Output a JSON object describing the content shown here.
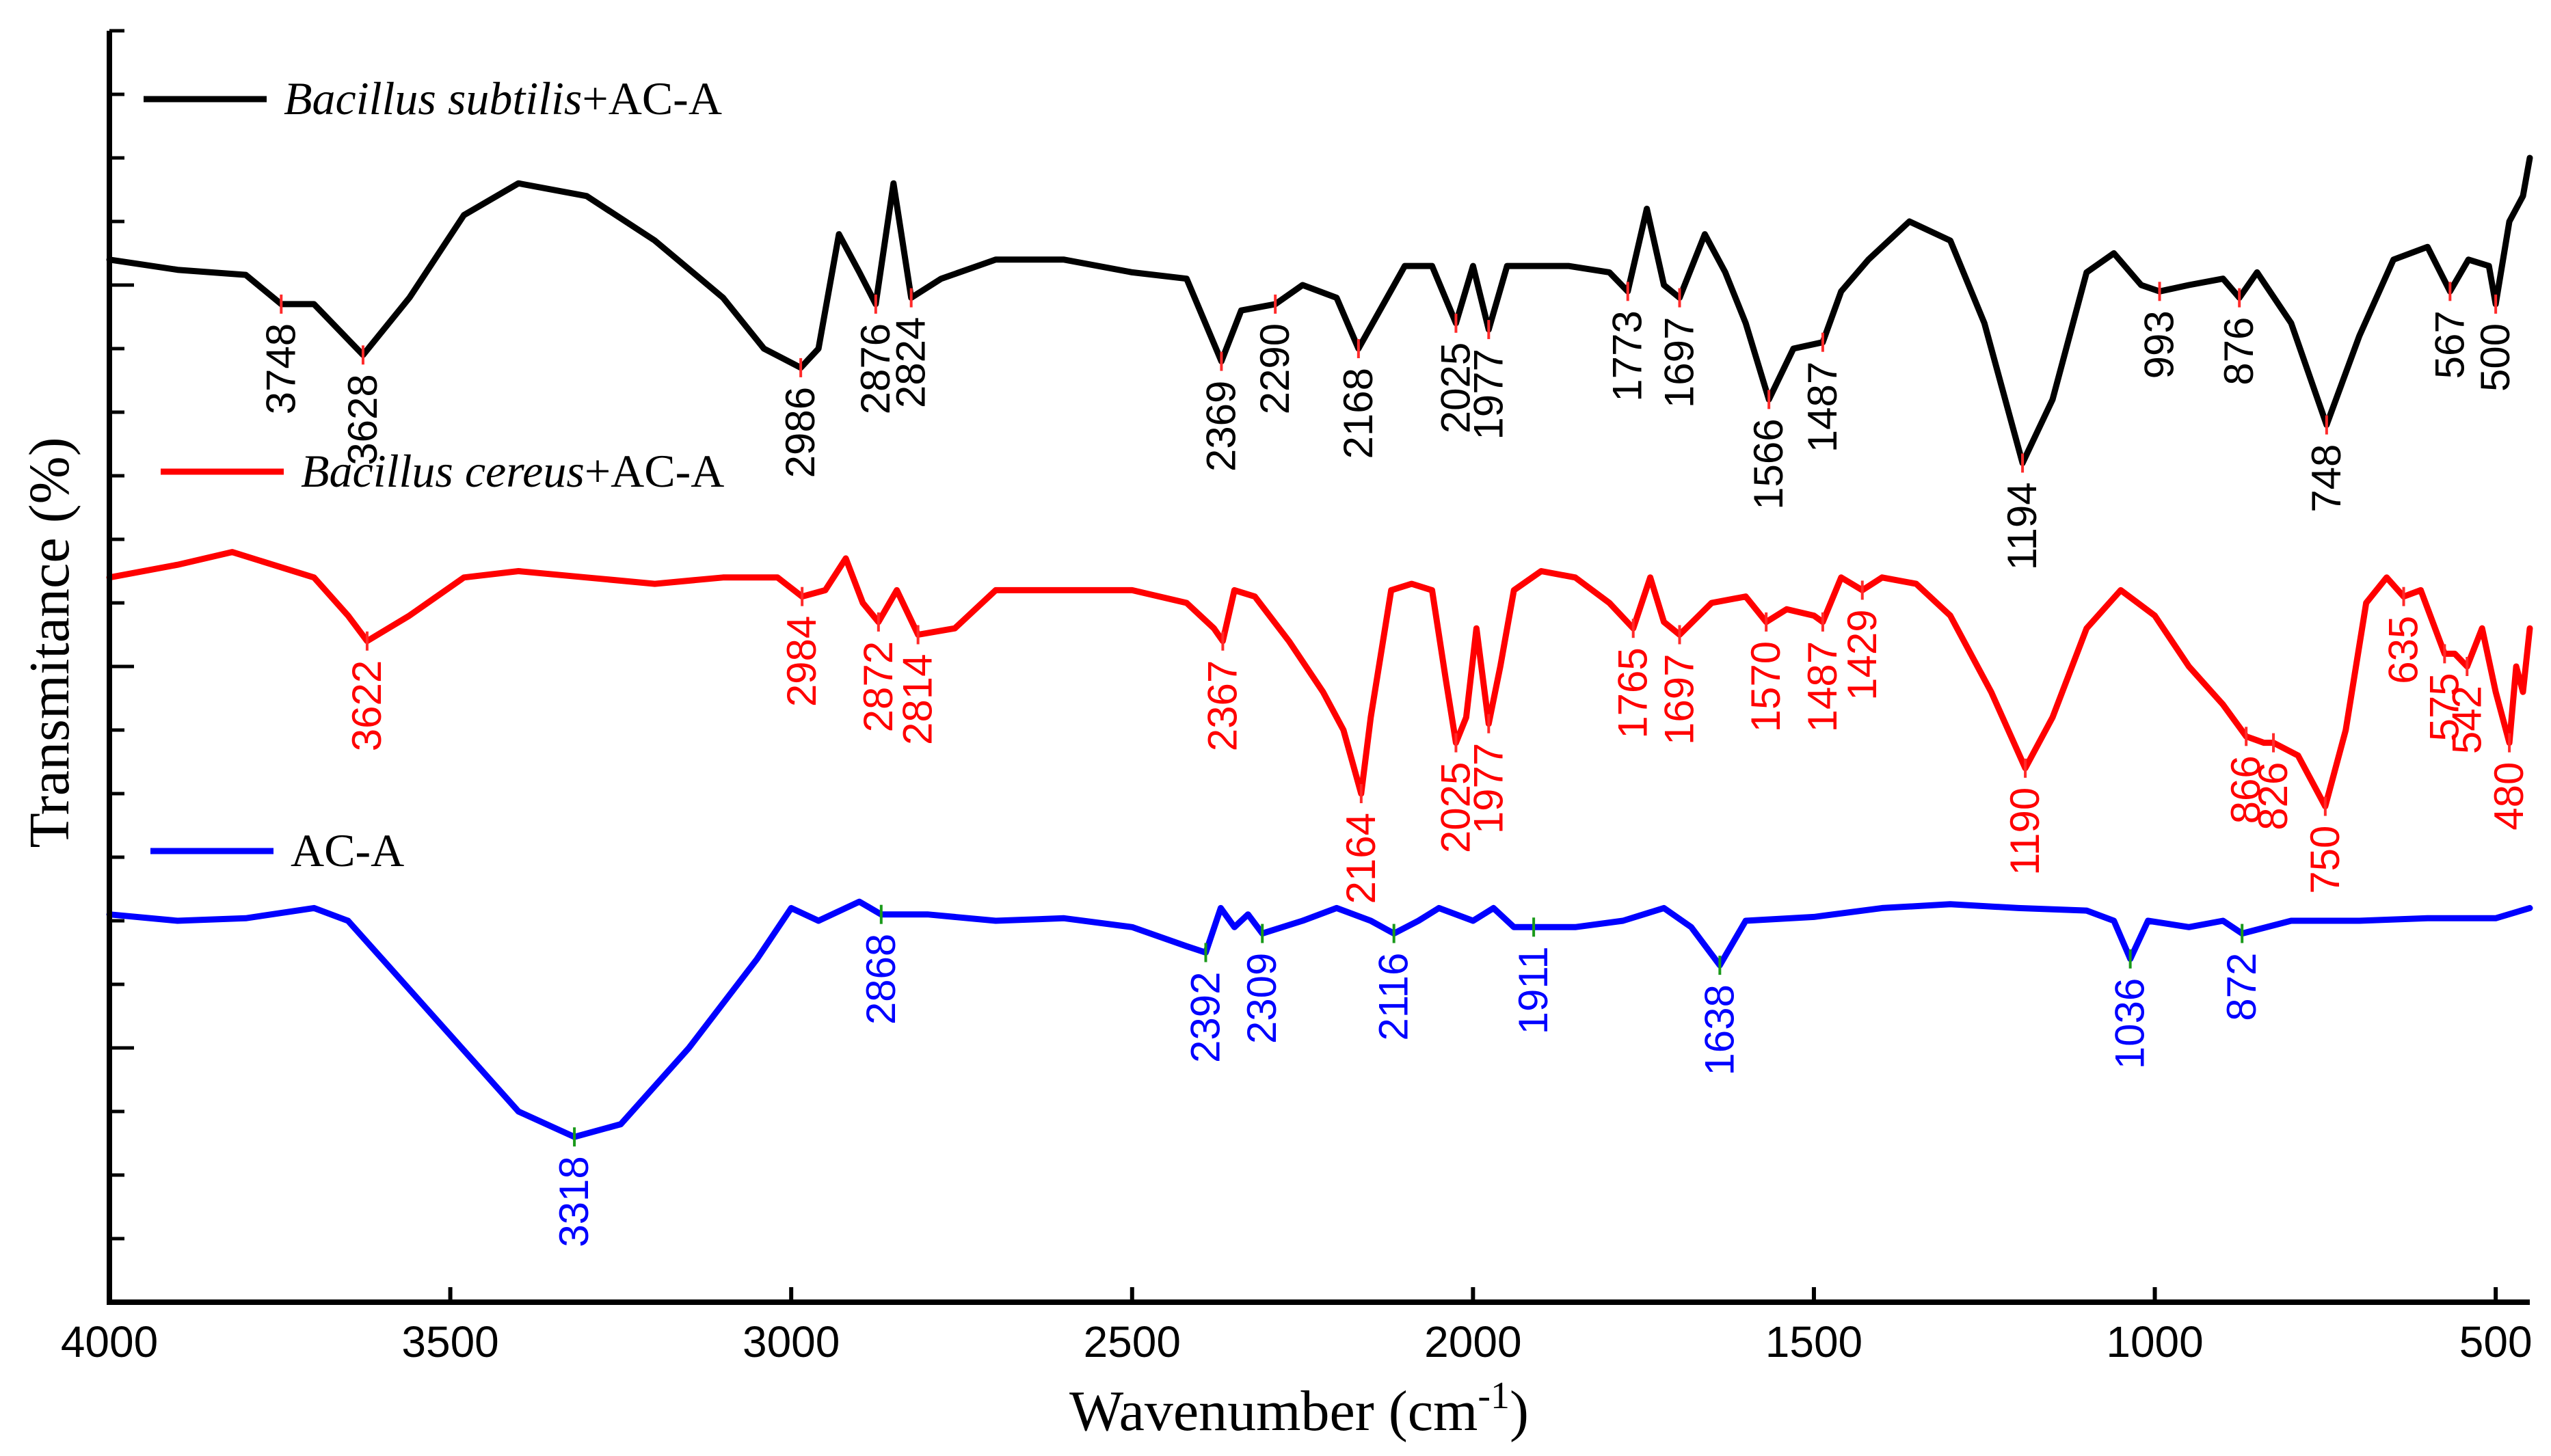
{
  "chart_data": {
    "type": "line",
    "title": "",
    "xlabel": "Wavenumber  (cm",
    "xlabel_sup": "-1",
    "xlabel_close": ")",
    "ylabel": "Transmitance (%)",
    "xlim": [
      4000,
      450
    ],
    "x_reversed": true,
    "x_ticks": [
      4000,
      3500,
      3000,
      2500,
      2000,
      1500,
      1000,
      500
    ],
    "series": [
      {
        "name": "Bacillus subtilis+AC-A",
        "legend_italic": "Bacillus subtilis",
        "legend_suffix": "+AC-A",
        "color": "#000000",
        "tick_color": "#ff2a2a",
        "baseline": 0.2,
        "points": [
          [
            4000,
            0.18
          ],
          [
            3900,
            0.188
          ],
          [
            3800,
            0.192
          ],
          [
            3748,
            0.215
          ],
          [
            3700,
            0.215
          ],
          [
            3628,
            0.255
          ],
          [
            3560,
            0.21
          ],
          [
            3480,
            0.145
          ],
          [
            3400,
            0.12
          ],
          [
            3300,
            0.13
          ],
          [
            3200,
            0.165
          ],
          [
            3100,
            0.21
          ],
          [
            3040,
            0.25
          ],
          [
            2986,
            0.265
          ],
          [
            2960,
            0.25
          ],
          [
            2930,
            0.16
          ],
          [
            2900,
            0.19
          ],
          [
            2876,
            0.215
          ],
          [
            2850,
            0.12
          ],
          [
            2824,
            0.21
          ],
          [
            2780,
            0.195
          ],
          [
            2700,
            0.18
          ],
          [
            2600,
            0.18
          ],
          [
            2500,
            0.19
          ],
          [
            2420,
            0.195
          ],
          [
            2369,
            0.26
          ],
          [
            2340,
            0.22
          ],
          [
            2290,
            0.215
          ],
          [
            2250,
            0.2
          ],
          [
            2200,
            0.21
          ],
          [
            2168,
            0.25
          ],
          [
            2100,
            0.185
          ],
          [
            2060,
            0.185
          ],
          [
            2025,
            0.23
          ],
          [
            2000,
            0.185
          ],
          [
            1977,
            0.235
          ],
          [
            1950,
            0.185
          ],
          [
            1860,
            0.185
          ],
          [
            1800,
            0.19
          ],
          [
            1773,
            0.205
          ],
          [
            1745,
            0.14
          ],
          [
            1720,
            0.2
          ],
          [
            1697,
            0.21
          ],
          [
            1660,
            0.16
          ],
          [
            1630,
            0.19
          ],
          [
            1600,
            0.23
          ],
          [
            1566,
            0.29
          ],
          [
            1530,
            0.25
          ],
          [
            1487,
            0.245
          ],
          [
            1460,
            0.205
          ],
          [
            1420,
            0.18
          ],
          [
            1360,
            0.15
          ],
          [
            1300,
            0.165
          ],
          [
            1250,
            0.23
          ],
          [
            1194,
            0.34
          ],
          [
            1150,
            0.29
          ],
          [
            1100,
            0.19
          ],
          [
            1060,
            0.175
          ],
          [
            1020,
            0.2
          ],
          [
            993,
            0.205
          ],
          [
            950,
            0.2
          ],
          [
            900,
            0.195
          ],
          [
            876,
            0.21
          ],
          [
            850,
            0.19
          ],
          [
            800,
            0.23
          ],
          [
            748,
            0.31
          ],
          [
            700,
            0.24
          ],
          [
            650,
            0.18
          ],
          [
            600,
            0.17
          ],
          [
            567,
            0.205
          ],
          [
            540,
            0.18
          ],
          [
            510,
            0.185
          ],
          [
            500,
            0.215
          ],
          [
            480,
            0.15
          ],
          [
            460,
            0.13
          ],
          [
            450,
            0.1
          ]
        ],
        "peaks": [
          {
            "x": 3748,
            "label": "3748"
          },
          {
            "x": 3628,
            "label": "3628"
          },
          {
            "x": 2986,
            "label": "2986"
          },
          {
            "x": 2876,
            "label": "2876"
          },
          {
            "x": 2824,
            "label": "2824"
          },
          {
            "x": 2369,
            "label": "2369"
          },
          {
            "x": 2290,
            "label": "2290"
          },
          {
            "x": 2168,
            "label": "2168"
          },
          {
            "x": 2025,
            "label": "2025"
          },
          {
            "x": 1977,
            "label": "1977"
          },
          {
            "x": 1773,
            "label": "1773"
          },
          {
            "x": 1697,
            "label": "1697"
          },
          {
            "x": 1566,
            "label": "1566"
          },
          {
            "x": 1487,
            "label": "1487"
          },
          {
            "x": 1194,
            "label": "1194"
          },
          {
            "x": 993,
            "label": "993"
          },
          {
            "x": 876,
            "label": "876"
          },
          {
            "x": 748,
            "label": "748"
          },
          {
            "x": 567,
            "label": "567"
          },
          {
            "x": 500,
            "label": "500"
          }
        ]
      },
      {
        "name": "Bacillus cereus+AC-A",
        "legend_italic": "Bacillus cereus",
        "legend_suffix": "+AC-A",
        "color": "#ff0000",
        "tick_color": "#ff2a2a",
        "baseline": 0.5,
        "points": [
          [
            4000,
            0.43
          ],
          [
            3900,
            0.42
          ],
          [
            3820,
            0.41
          ],
          [
            3760,
            0.42
          ],
          [
            3700,
            0.43
          ],
          [
            3650,
            0.46
          ],
          [
            3622,
            0.48
          ],
          [
            3560,
            0.46
          ],
          [
            3480,
            0.43
          ],
          [
            3400,
            0.425
          ],
          [
            3300,
            0.43
          ],
          [
            3200,
            0.435
          ],
          [
            3100,
            0.43
          ],
          [
            3020,
            0.43
          ],
          [
            2984,
            0.445
          ],
          [
            2950,
            0.44
          ],
          [
            2920,
            0.415
          ],
          [
            2895,
            0.45
          ],
          [
            2872,
            0.465
          ],
          [
            2845,
            0.44
          ],
          [
            2814,
            0.475
          ],
          [
            2760,
            0.47
          ],
          [
            2700,
            0.44
          ],
          [
            2600,
            0.44
          ],
          [
            2500,
            0.44
          ],
          [
            2420,
            0.45
          ],
          [
            2380,
            0.47
          ],
          [
            2367,
            0.48
          ],
          [
            2350,
            0.44
          ],
          [
            2320,
            0.445
          ],
          [
            2270,
            0.48
          ],
          [
            2220,
            0.52
          ],
          [
            2190,
            0.55
          ],
          [
            2164,
            0.6
          ],
          [
            2150,
            0.54
          ],
          [
            2120,
            0.44
          ],
          [
            2090,
            0.435
          ],
          [
            2060,
            0.44
          ],
          [
            2040,
            0.51
          ],
          [
            2025,
            0.56
          ],
          [
            2010,
            0.54
          ],
          [
            1995,
            0.47
          ],
          [
            1977,
            0.545
          ],
          [
            1960,
            0.5
          ],
          [
            1940,
            0.44
          ],
          [
            1900,
            0.425
          ],
          [
            1850,
            0.43
          ],
          [
            1800,
            0.45
          ],
          [
            1765,
            0.47
          ],
          [
            1740,
            0.43
          ],
          [
            1720,
            0.465
          ],
          [
            1697,
            0.475
          ],
          [
            1650,
            0.45
          ],
          [
            1600,
            0.445
          ],
          [
            1570,
            0.465
          ],
          [
            1540,
            0.455
          ],
          [
            1500,
            0.46
          ],
          [
            1487,
            0.465
          ],
          [
            1460,
            0.43
          ],
          [
            1429,
            0.44
          ],
          [
            1400,
            0.43
          ],
          [
            1350,
            0.435
          ],
          [
            1300,
            0.46
          ],
          [
            1240,
            0.52
          ],
          [
            1190,
            0.58
          ],
          [
            1150,
            0.54
          ],
          [
            1100,
            0.47
          ],
          [
            1050,
            0.44
          ],
          [
            1000,
            0.46
          ],
          [
            950,
            0.5
          ],
          [
            900,
            0.53
          ],
          [
            866,
            0.555
          ],
          [
            840,
            0.56
          ],
          [
            826,
            0.56
          ],
          [
            790,
            0.57
          ],
          [
            750,
            0.61
          ],
          [
            720,
            0.55
          ],
          [
            690,
            0.45
          ],
          [
            660,
            0.43
          ],
          [
            635,
            0.445
          ],
          [
            610,
            0.44
          ],
          [
            575,
            0.49
          ],
          [
            560,
            0.49
          ],
          [
            542,
            0.5
          ],
          [
            520,
            0.47
          ],
          [
            500,
            0.52
          ],
          [
            480,
            0.56
          ],
          [
            470,
            0.5
          ],
          [
            460,
            0.52
          ],
          [
            450,
            0.47
          ]
        ],
        "peaks": [
          {
            "x": 3622,
            "label": "3622"
          },
          {
            "x": 2984,
            "label": "2984"
          },
          {
            "x": 2872,
            "label": "2872"
          },
          {
            "x": 2814,
            "label": "2814"
          },
          {
            "x": 2367,
            "label": "2367"
          },
          {
            "x": 2164,
            "label": "2164"
          },
          {
            "x": 2025,
            "label": "2025"
          },
          {
            "x": 1977,
            "label": "1977"
          },
          {
            "x": 1765,
            "label": "1765"
          },
          {
            "x": 1697,
            "label": "1697"
          },
          {
            "x": 1570,
            "label": "1570"
          },
          {
            "x": 1487,
            "label": "1487"
          },
          {
            "x": 1429,
            "label": "1429"
          },
          {
            "x": 1190,
            "label": "1190"
          },
          {
            "x": 866,
            "label": "866"
          },
          {
            "x": 826,
            "label": "826"
          },
          {
            "x": 750,
            "label": "750"
          },
          {
            "x": 635,
            "label": "635"
          },
          {
            "x": 575,
            "label": "575"
          },
          {
            "x": 542,
            "label": "542"
          },
          {
            "x": 480,
            "label": "480"
          }
        ]
      },
      {
        "name": "AC-A",
        "legend_italic": "",
        "legend_suffix": "AC-A",
        "color": "#0000ff",
        "tick_color": "#1a9a1a",
        "baseline": 0.8,
        "points": [
          [
            4000,
            0.695
          ],
          [
            3900,
            0.7
          ],
          [
            3800,
            0.698
          ],
          [
            3700,
            0.69
          ],
          [
            3650,
            0.7
          ],
          [
            3600,
            0.73
          ],
          [
            3500,
            0.79
          ],
          [
            3400,
            0.85
          ],
          [
            3318,
            0.87
          ],
          [
            3250,
            0.86
          ],
          [
            3150,
            0.8
          ],
          [
            3050,
            0.73
          ],
          [
            3000,
            0.69
          ],
          [
            2960,
            0.7
          ],
          [
            2900,
            0.685
          ],
          [
            2868,
            0.695
          ],
          [
            2800,
            0.695
          ],
          [
            2700,
            0.7
          ],
          [
            2600,
            0.698
          ],
          [
            2500,
            0.705
          ],
          [
            2420,
            0.72
          ],
          [
            2392,
            0.725
          ],
          [
            2370,
            0.69
          ],
          [
            2350,
            0.705
          ],
          [
            2330,
            0.695
          ],
          [
            2309,
            0.71
          ],
          [
            2250,
            0.7
          ],
          [
            2200,
            0.69
          ],
          [
            2150,
            0.7
          ],
          [
            2116,
            0.71
          ],
          [
            2080,
            0.7
          ],
          [
            2050,
            0.69
          ],
          [
            2000,
            0.7
          ],
          [
            1970,
            0.69
          ],
          [
            1940,
            0.705
          ],
          [
            1911,
            0.705
          ],
          [
            1850,
            0.705
          ],
          [
            1780,
            0.7
          ],
          [
            1720,
            0.69
          ],
          [
            1680,
            0.705
          ],
          [
            1638,
            0.735
          ],
          [
            1600,
            0.7
          ],
          [
            1500,
            0.697
          ],
          [
            1400,
            0.69
          ],
          [
            1300,
            0.687
          ],
          [
            1200,
            0.69
          ],
          [
            1100,
            0.692
          ],
          [
            1060,
            0.7
          ],
          [
            1036,
            0.73
          ],
          [
            1010,
            0.7
          ],
          [
            950,
            0.705
          ],
          [
            900,
            0.7
          ],
          [
            872,
            0.71
          ],
          [
            800,
            0.7
          ],
          [
            700,
            0.7
          ],
          [
            600,
            0.698
          ],
          [
            500,
            0.698
          ],
          [
            450,
            0.69
          ]
        ],
        "peaks": [
          {
            "x": 3318,
            "label": "3318"
          },
          {
            "x": 2868,
            "label": "2868"
          },
          {
            "x": 2392,
            "label": "2392"
          },
          {
            "x": 2309,
            "label": "2309"
          },
          {
            "x": 2116,
            "label": "2116"
          },
          {
            "x": 1911,
            "label": "1911"
          },
          {
            "x": 1638,
            "label": "1638"
          },
          {
            "x": 1036,
            "label": "1036"
          },
          {
            "x": 872,
            "label": "872"
          }
        ]
      }
    ]
  }
}
